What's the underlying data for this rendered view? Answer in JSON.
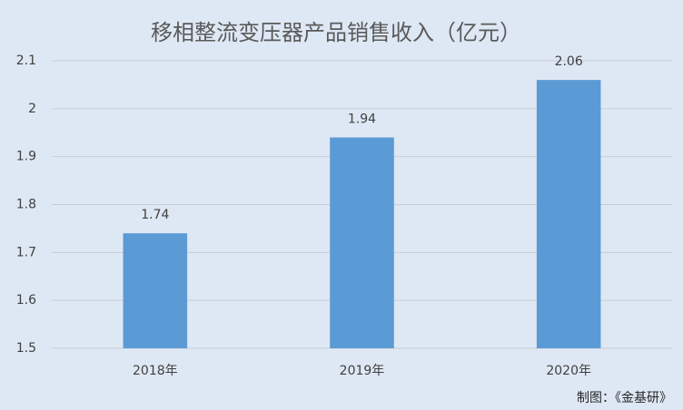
{
  "chart_data": {
    "type": "bar",
    "title": "移相整流变压器产品销售收入（亿元）",
    "categories": [
      "2018年",
      "2019年",
      "2020年"
    ],
    "values": [
      1.74,
      1.94,
      2.06
    ],
    "color": "#5b9bd5",
    "ylim": [
      1.5,
      2.1
    ],
    "yticks": [
      1.5,
      1.6,
      1.7,
      1.8,
      1.9,
      2,
      2.1
    ],
    "grid": true,
    "source": "制图：《金基研》"
  }
}
